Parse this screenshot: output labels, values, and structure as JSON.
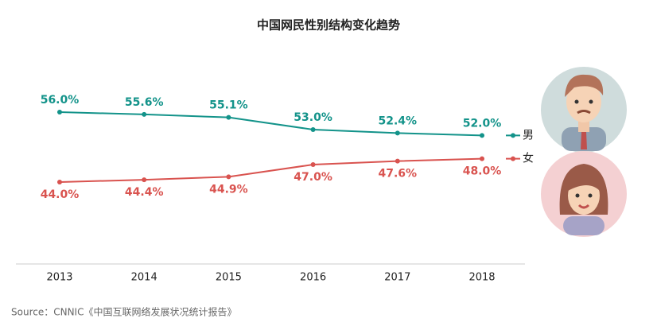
{
  "chart_data": {
    "type": "line",
    "title": "中国网民性别结构变化趋势",
    "categories": [
      "2013",
      "2014",
      "2015",
      "2016",
      "2017",
      "2018"
    ],
    "series": [
      {
        "name": "男",
        "color": "#13938a",
        "values": [
          56.0,
          55.6,
          55.1,
          53.0,
          52.4,
          52.0
        ],
        "value_labels": [
          "56.0%",
          "55.6%",
          "55.1%",
          "53.0%",
          "52.4%",
          "52.0%"
        ]
      },
      {
        "name": "女",
        "color": "#d9534f",
        "values": [
          44.0,
          44.4,
          44.9,
          47.0,
          47.6,
          48.0
        ],
        "value_labels": [
          "44.0%",
          "44.4%",
          "44.9%",
          "47.0%",
          "47.6%",
          "48.0%"
        ]
      }
    ],
    "source": "Source：CNNIC《中国互联网络发展状况统计报告》"
  }
}
